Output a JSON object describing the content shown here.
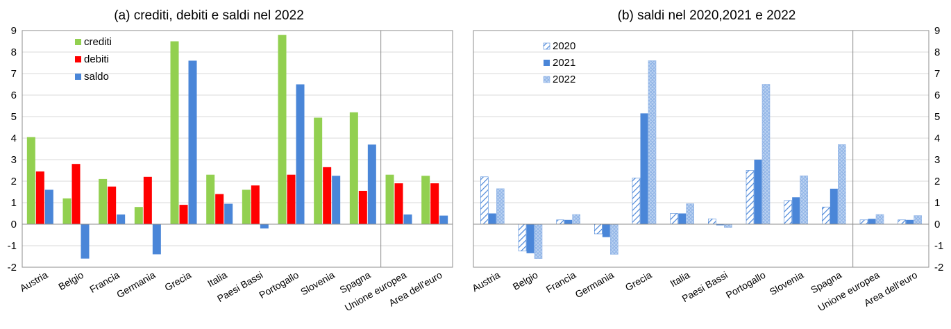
{
  "chart_data": [
    {
      "type": "bar",
      "title": "(a)   crediti, debiti e saldi nel 2022",
      "categories": [
        "Austria",
        "Belgio",
        "Francia",
        "Germania",
        "Grecia",
        "Italia",
        "Paesi Bassi",
        "Portogallo",
        "Slovenia",
        "Spagna",
        "Unione europea",
        "Area dell'euro"
      ],
      "series": [
        {
          "name": "crediti",
          "color": "#92d050",
          "values": [
            4.05,
            1.2,
            2.1,
            0.8,
            8.5,
            2.3,
            1.6,
            8.8,
            4.95,
            5.2,
            2.3,
            2.25
          ]
        },
        {
          "name": "debiti",
          "color": "#ff0000",
          "values": [
            2.45,
            2.8,
            1.75,
            2.2,
            0.9,
            1.4,
            1.8,
            2.3,
            2.65,
            1.55,
            1.9,
            1.9
          ]
        },
        {
          "name": "saldo",
          "color": "#4a86d8",
          "values": [
            1.6,
            -1.6,
            0.45,
            -1.4,
            7.6,
            0.95,
            -0.2,
            6.5,
            2.25,
            3.7,
            0.45,
            0.4
          ]
        }
      ],
      "ylim": [
        -2,
        9
      ],
      "yticks": [
        "-2",
        "-1",
        "0",
        "1",
        "2",
        "3",
        "4",
        "5",
        "6",
        "7",
        "8",
        "9"
      ],
      "grid": true,
      "legend_position": "top-left"
    },
    {
      "type": "bar",
      "title": "(b)   saldi nel 2020,2021 e 2022",
      "categories": [
        "Austria",
        "Belgio",
        "Francia",
        "Germania",
        "Grecia",
        "Italia",
        "Paesi Bassi",
        "Portogallo",
        "Slovenia",
        "Spagna",
        "Unione europea",
        "Area dell'euro"
      ],
      "series": [
        {
          "name": "2020",
          "color": "#4a86d8",
          "pattern": "diagonal-hatch",
          "values": [
            2.2,
            -1.25,
            0.2,
            -0.45,
            2.15,
            0.5,
            0.25,
            2.5,
            1.1,
            0.8,
            0.2,
            0.2
          ]
        },
        {
          "name": "2021",
          "color": "#4a86d8",
          "pattern": "solid",
          "values": [
            0.5,
            -1.35,
            0.2,
            -0.6,
            5.15,
            0.5,
            -0.05,
            3.0,
            1.25,
            1.65,
            0.25,
            0.2
          ]
        },
        {
          "name": "2022",
          "color": "#a9c6ee",
          "pattern": "crosshatch",
          "values": [
            1.65,
            -1.6,
            0.45,
            -1.4,
            7.6,
            0.95,
            -0.15,
            6.5,
            2.25,
            3.7,
            0.45,
            0.4
          ]
        }
      ],
      "ylim": [
        -2,
        9
      ],
      "yticks": [
        "-2",
        "-1",
        "0",
        "1",
        "2",
        "3",
        "4",
        "5",
        "6",
        "7",
        "8",
        "9"
      ],
      "grid": true,
      "legend_position": "top-left"
    }
  ]
}
